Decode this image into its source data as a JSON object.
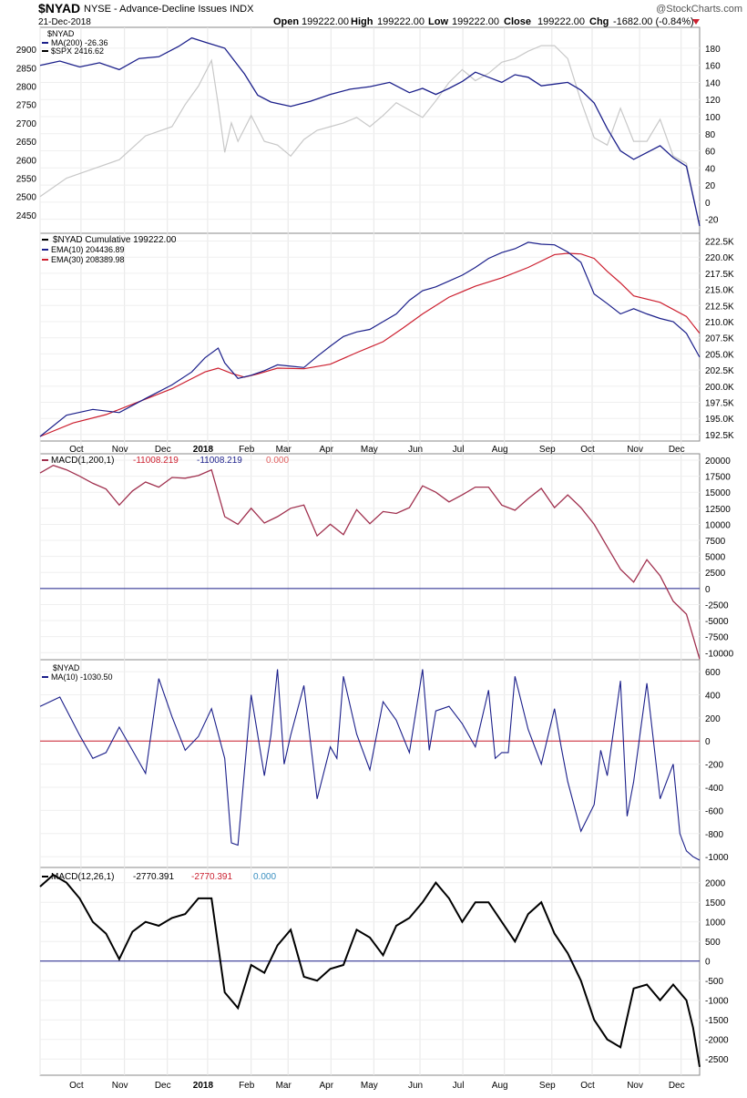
{
  "header": {
    "symbol": "$NYAD",
    "description": "NYSE - Advance-Decline Issues INDX",
    "date": "21-Dec-2018",
    "open_label": "Open",
    "open": "199222.00",
    "high_label": "High",
    "high": "199222.00",
    "low_label": "Low",
    "low": "199222.00",
    "close_label": "Close",
    "close": "199222.00",
    "chg_label": "Chg",
    "chg": "-1682.00 (-0.84%)",
    "watermark": "@StockCharts.com"
  },
  "colors": {
    "navy": "#1b1f8a",
    "spx_gray": "#c8c8c8",
    "ema30_red": "#cc1f2f",
    "macd_maroon": "#a0304e",
    "black": "#000000",
    "zero_navy": "#1b1f8a",
    "zero_red": "#cc1f2f",
    "chg_down": "#cc1f2f"
  },
  "x_axis_months": [
    "Oct",
    "Nov",
    "Dec",
    "2018",
    "Feb",
    "Mar",
    "Apr",
    "May",
    "Jun",
    "Jul",
    "Aug",
    "Sep",
    "Oct",
    "Nov",
    "Dec"
  ],
  "chart_data": [
    {
      "type": "line",
      "panel": "ma200",
      "legend": [
        "$NYAD",
        "MA(200) -26.36",
        "$SPX 2416.62"
      ],
      "right_ticks": [
        180,
        160,
        140,
        120,
        100,
        80,
        60,
        40,
        20,
        0,
        -20
      ],
      "left_ticks": [
        2900,
        2850,
        2800,
        2750,
        2700,
        2650,
        2600,
        2550,
        2500,
        2450
      ],
      "ylim_right": [
        -30,
        198
      ],
      "ylim_left": [
        2415,
        2945
      ],
      "series": [
        {
          "name": "MA(200) -26.36",
          "axis": "right",
          "x": [
            0,
            3,
            6,
            9,
            12,
            15,
            18,
            21,
            23,
            25,
            28,
            31,
            33,
            35,
            38,
            41,
            44,
            47,
            50,
            53,
            56,
            58,
            60,
            62,
            64,
            66,
            68,
            70,
            72,
            74,
            76,
            78,
            80,
            82,
            84,
            86,
            88,
            90,
            92,
            94,
            96,
            98,
            100
          ],
          "y": [
            160,
            165,
            158,
            163,
            155,
            168,
            170,
            182,
            192,
            187,
            180,
            150,
            125,
            117,
            112,
            118,
            126,
            132,
            135,
            140,
            128,
            133,
            126,
            133,
            141,
            152,
            146,
            140,
            149,
            146,
            136,
            138,
            140,
            131,
            116,
            86,
            60,
            50,
            58,
            66,
            52,
            42,
            -28
          ]
        },
        {
          "name": "$SPX 2416.62",
          "axis": "left",
          "x": [
            0,
            4,
            8,
            12,
            16,
            20,
            22,
            24,
            26,
            27,
            28,
            29,
            30,
            32,
            34,
            36,
            38,
            40,
            42,
            44,
            46,
            48,
            50,
            52,
            54,
            56,
            58,
            60,
            62,
            64,
            66,
            68,
            70,
            72,
            74,
            76,
            78,
            80,
            82,
            84,
            86,
            88,
            90,
            92,
            94,
            96,
            98,
            100
          ],
          "y": [
            2500,
            2550,
            2575,
            2600,
            2665,
            2690,
            2750,
            2800,
            2870,
            2750,
            2620,
            2700,
            2650,
            2720,
            2650,
            2640,
            2610,
            2655,
            2680,
            2690,
            2700,
            2715,
            2690,
            2720,
            2755,
            2735,
            2715,
            2760,
            2810,
            2845,
            2815,
            2835,
            2865,
            2875,
            2895,
            2910,
            2910,
            2875,
            2760,
            2660,
            2640,
            2740,
            2650,
            2650,
            2710,
            2610,
            2590,
            2420
          ]
        }
      ]
    },
    {
      "type": "line",
      "panel": "cumulative",
      "legend": [
        "$NYAD Cumulative 199222.00",
        "EMA(10) 204436.89",
        "EMA(30) 208389.98"
      ],
      "right_ticks": [
        "222.5K",
        "220.0K",
        "217.5K",
        "215.0K",
        "212.5K",
        "210.0K",
        "207.5K",
        "205.0K",
        "202.5K",
        "200.0K",
        "197.5K",
        "195.0K",
        "192.5K"
      ],
      "tick_values": [
        222.5,
        220,
        217.5,
        215,
        212.5,
        210,
        207.5,
        205,
        202.5,
        200,
        197.5,
        195,
        192.5
      ],
      "ylim": [
        191.5,
        223.7
      ],
      "series": [
        {
          "name": "EMA(10) 204436.89",
          "unit": "K",
          "x": [
            0,
            4,
            8,
            12,
            16,
            20,
            23,
            25,
            27,
            28,
            30,
            32,
            34,
            36,
            38,
            40,
            42,
            44,
            46,
            48,
            50,
            52,
            54,
            56,
            58,
            60,
            62,
            64,
            66,
            68,
            70,
            72,
            74,
            76,
            78,
            80,
            82,
            84,
            86,
            88,
            90,
            92,
            94,
            96,
            98,
            100
          ],
          "y": [
            192.2,
            195.5,
            196.4,
            195.9,
            198.1,
            200.2,
            202.2,
            204.4,
            205.9,
            203.6,
            201.2,
            201.7,
            202.4,
            203.3,
            203.1,
            202.9,
            204.6,
            206.2,
            207.7,
            208.4,
            208.8,
            210.0,
            211.2,
            213.3,
            214.8,
            215.4,
            216.3,
            217.2,
            218.4,
            219.8,
            220.7,
            221.3,
            222.3,
            222.0,
            221.9,
            220.8,
            219.2,
            214.3,
            212.8,
            211.2,
            212.0,
            211.2,
            210.5,
            210.0,
            208.2,
            204.5
          ]
        },
        {
          "name": "EMA(30) 208389.98",
          "unit": "K",
          "x": [
            0,
            5,
            10,
            15,
            20,
            25,
            27,
            29,
            31,
            33,
            36,
            40,
            44,
            48,
            52,
            55,
            58,
            62,
            66,
            70,
            74,
            78,
            80,
            82,
            84,
            86,
            88,
            90,
            94,
            98,
            100
          ],
          "y": [
            192.2,
            194.3,
            195.6,
            197.6,
            199.6,
            202.2,
            202.8,
            202.0,
            201.4,
            201.9,
            202.8,
            202.7,
            203.4,
            205.2,
            206.9,
            209.0,
            211.2,
            213.8,
            215.5,
            216.8,
            218.4,
            220.4,
            220.6,
            220.5,
            219.8,
            217.8,
            216.0,
            214.0,
            213.0,
            210.8,
            208.2
          ]
        }
      ]
    },
    {
      "type": "line",
      "panel": "macd_1_200",
      "legend": [
        "MACD(1,200,1)",
        "-11008.219",
        "-11008.219",
        "0.000"
      ],
      "right_ticks": [
        20000,
        17500,
        15000,
        12500,
        10000,
        7500,
        5000,
        2500,
        0,
        -2500,
        -5000,
        -7500,
        -10000
      ],
      "ylim": [
        -11100,
        21000
      ],
      "zero_line": 0,
      "series": [
        {
          "name": "MACD(1,200,1)",
          "x": [
            0,
            2,
            4,
            6,
            8,
            10,
            12,
            14,
            16,
            18,
            20,
            22,
            24,
            26,
            28,
            30,
            32,
            34,
            36,
            38,
            40,
            42,
            44,
            46,
            48,
            50,
            52,
            54,
            56,
            58,
            60,
            62,
            64,
            66,
            68,
            70,
            72,
            74,
            76,
            78,
            80,
            82,
            84,
            86,
            88,
            90,
            92,
            94,
            96,
            98,
            99,
            100
          ],
          "y": [
            18000,
            19200,
            18500,
            17500,
            16400,
            15500,
            13000,
            15200,
            16600,
            15800,
            17300,
            17200,
            17600,
            18500,
            11200,
            10000,
            12500,
            10200,
            11200,
            12500,
            13000,
            8200,
            10000,
            8400,
            12300,
            10100,
            12000,
            11700,
            12600,
            16000,
            15000,
            13500,
            14600,
            15800,
            15800,
            13000,
            12200,
            14000,
            15600,
            12600,
            14600,
            12600,
            10000,
            6500,
            3000,
            1000,
            4500,
            2000,
            -2000,
            -4000,
            -7500,
            -11000
          ]
        }
      ]
    },
    {
      "type": "line",
      "panel": "nyad_ma10",
      "legend": [
        "$NYAD",
        "MA(10) -1030.50"
      ],
      "right_ticks": [
        600,
        400,
        200,
        0,
        -200,
        -400,
        -600,
        -800,
        -1000
      ],
      "ylim": [
        -1030,
        640
      ],
      "zero_line": 0,
      "series": [
        {
          "name": "MA(10) -1030.50",
          "x": [
            0,
            3,
            6,
            8,
            10,
            12,
            14,
            16,
            18,
            20,
            22,
            24,
            26,
            28,
            29,
            30,
            32,
            34,
            35,
            36,
            37,
            38,
            40,
            42,
            44,
            45,
            46,
            48,
            50,
            52,
            54,
            56,
            58,
            59,
            60,
            62,
            64,
            66,
            68,
            69,
            70,
            71,
            72,
            74,
            76,
            78,
            79,
            80,
            82,
            84,
            85,
            86,
            88,
            89,
            90,
            92,
            94,
            96,
            97,
            98,
            99,
            100
          ],
          "y": [
            300,
            380,
            50,
            -150,
            -100,
            120,
            -80,
            -280,
            540,
            210,
            -80,
            40,
            280,
            -150,
            -880,
            -900,
            400,
            -300,
            50,
            620,
            -200,
            50,
            480,
            -500,
            -50,
            -150,
            560,
            60,
            -250,
            340,
            180,
            -100,
            620,
            -80,
            260,
            300,
            150,
            -50,
            440,
            -150,
            -100,
            -100,
            560,
            100,
            -200,
            280,
            -50,
            -350,
            -780,
            -550,
            -80,
            -300,
            520,
            -650,
            -350,
            500,
            -500,
            -200,
            -800,
            -950,
            -1000,
            -1030
          ]
        }
      ]
    },
    {
      "type": "line",
      "panel": "macd_12_26",
      "legend": [
        "MACD(12,26,1)",
        "-2770.391",
        "-2770.391",
        "0.000"
      ],
      "right_ticks": [
        2000,
        1500,
        1000,
        500,
        0,
        -500,
        -1000,
        -1500,
        -2000,
        -2500
      ],
      "ylim": [
        -2820,
        2250
      ],
      "zero_line": 0,
      "series": [
        {
          "name": "MACD(12,26,1)",
          "x": [
            0,
            2,
            4,
            6,
            8,
            10,
            12,
            14,
            16,
            18,
            20,
            22,
            24,
            26,
            28,
            30,
            32,
            34,
            36,
            38,
            40,
            42,
            44,
            46,
            48,
            50,
            52,
            54,
            56,
            58,
            60,
            62,
            64,
            66,
            68,
            70,
            72,
            74,
            76,
            78,
            80,
            82,
            84,
            86,
            88,
            90,
            92,
            94,
            96,
            98,
            99,
            100
          ],
          "y": [
            1900,
            2200,
            2000,
            1600,
            1000,
            700,
            50,
            750,
            1000,
            900,
            1100,
            1200,
            1600,
            1600,
            -800,
            -1200,
            -100,
            -300,
            400,
            800,
            -400,
            -500,
            -200,
            -100,
            800,
            600,
            150,
            900,
            1100,
            1500,
            2000,
            1600,
            1000,
            1500,
            1500,
            1000,
            500,
            1200,
            1500,
            700,
            200,
            -500,
            -1500,
            -2000,
            -2200,
            -700,
            -600,
            -1000,
            -600,
            -1000,
            -1700,
            -2700
          ]
        }
      ]
    }
  ]
}
